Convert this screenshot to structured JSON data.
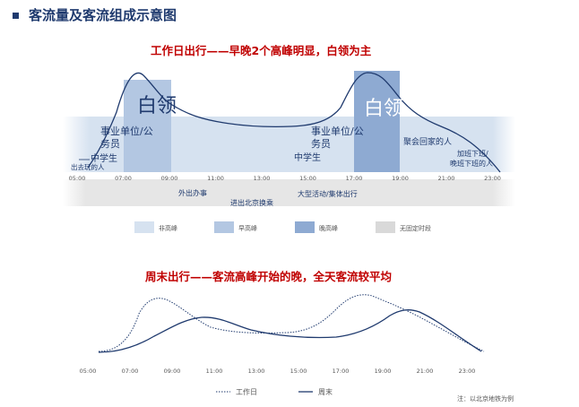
{
  "header": {
    "title": "客流量及客流组成示意图"
  },
  "weekday": {
    "title": "工作日出行——早晚2个高峰明显，白领为主",
    "time_ticks": [
      "05:00",
      "07:00",
      "09:00",
      "11:00",
      "13:00",
      "15:00",
      "17:00",
      "19:00",
      "21:00",
      "23:00"
    ],
    "peak_labels": [
      "白领",
      "白领"
    ],
    "annotations": [
      "事业单位/公务员",
      "中学生",
      "出去玩的人",
      "外出办事",
      "进出北京换乘",
      "中学生",
      "事业单位/公务员",
      "大型活动/集体出行",
      "聚会回家的人",
      "加班下班/晚班下班的人"
    ],
    "legend": [
      {
        "label": "非高峰",
        "color": "#d6e2f0"
      },
      {
        "label": "早高峰",
        "color": "#b3c7e2"
      },
      {
        "label": "晚高峰",
        "color": "#8eaad2"
      },
      {
        "label": "无固定时段",
        "color": "#d9d9d9"
      }
    ]
  },
  "weekend": {
    "title": "周末出行——客流高峰开始的晚，全天客流较平均",
    "time_ticks": [
      "05:00",
      "07:00",
      "09:00",
      "11:00",
      "13:00",
      "15:00",
      "17:00",
      "19:00",
      "21:00",
      "23:00"
    ],
    "legend": [
      {
        "label": "工作日",
        "style": "dotted"
      },
      {
        "label": "周末",
        "style": "solid"
      }
    ],
    "note": "注：以北京地铁为例"
  },
  "colors": {
    "curve": "#1f3a6e",
    "title_red": "#c00000",
    "header": "#1f3a6e"
  }
}
